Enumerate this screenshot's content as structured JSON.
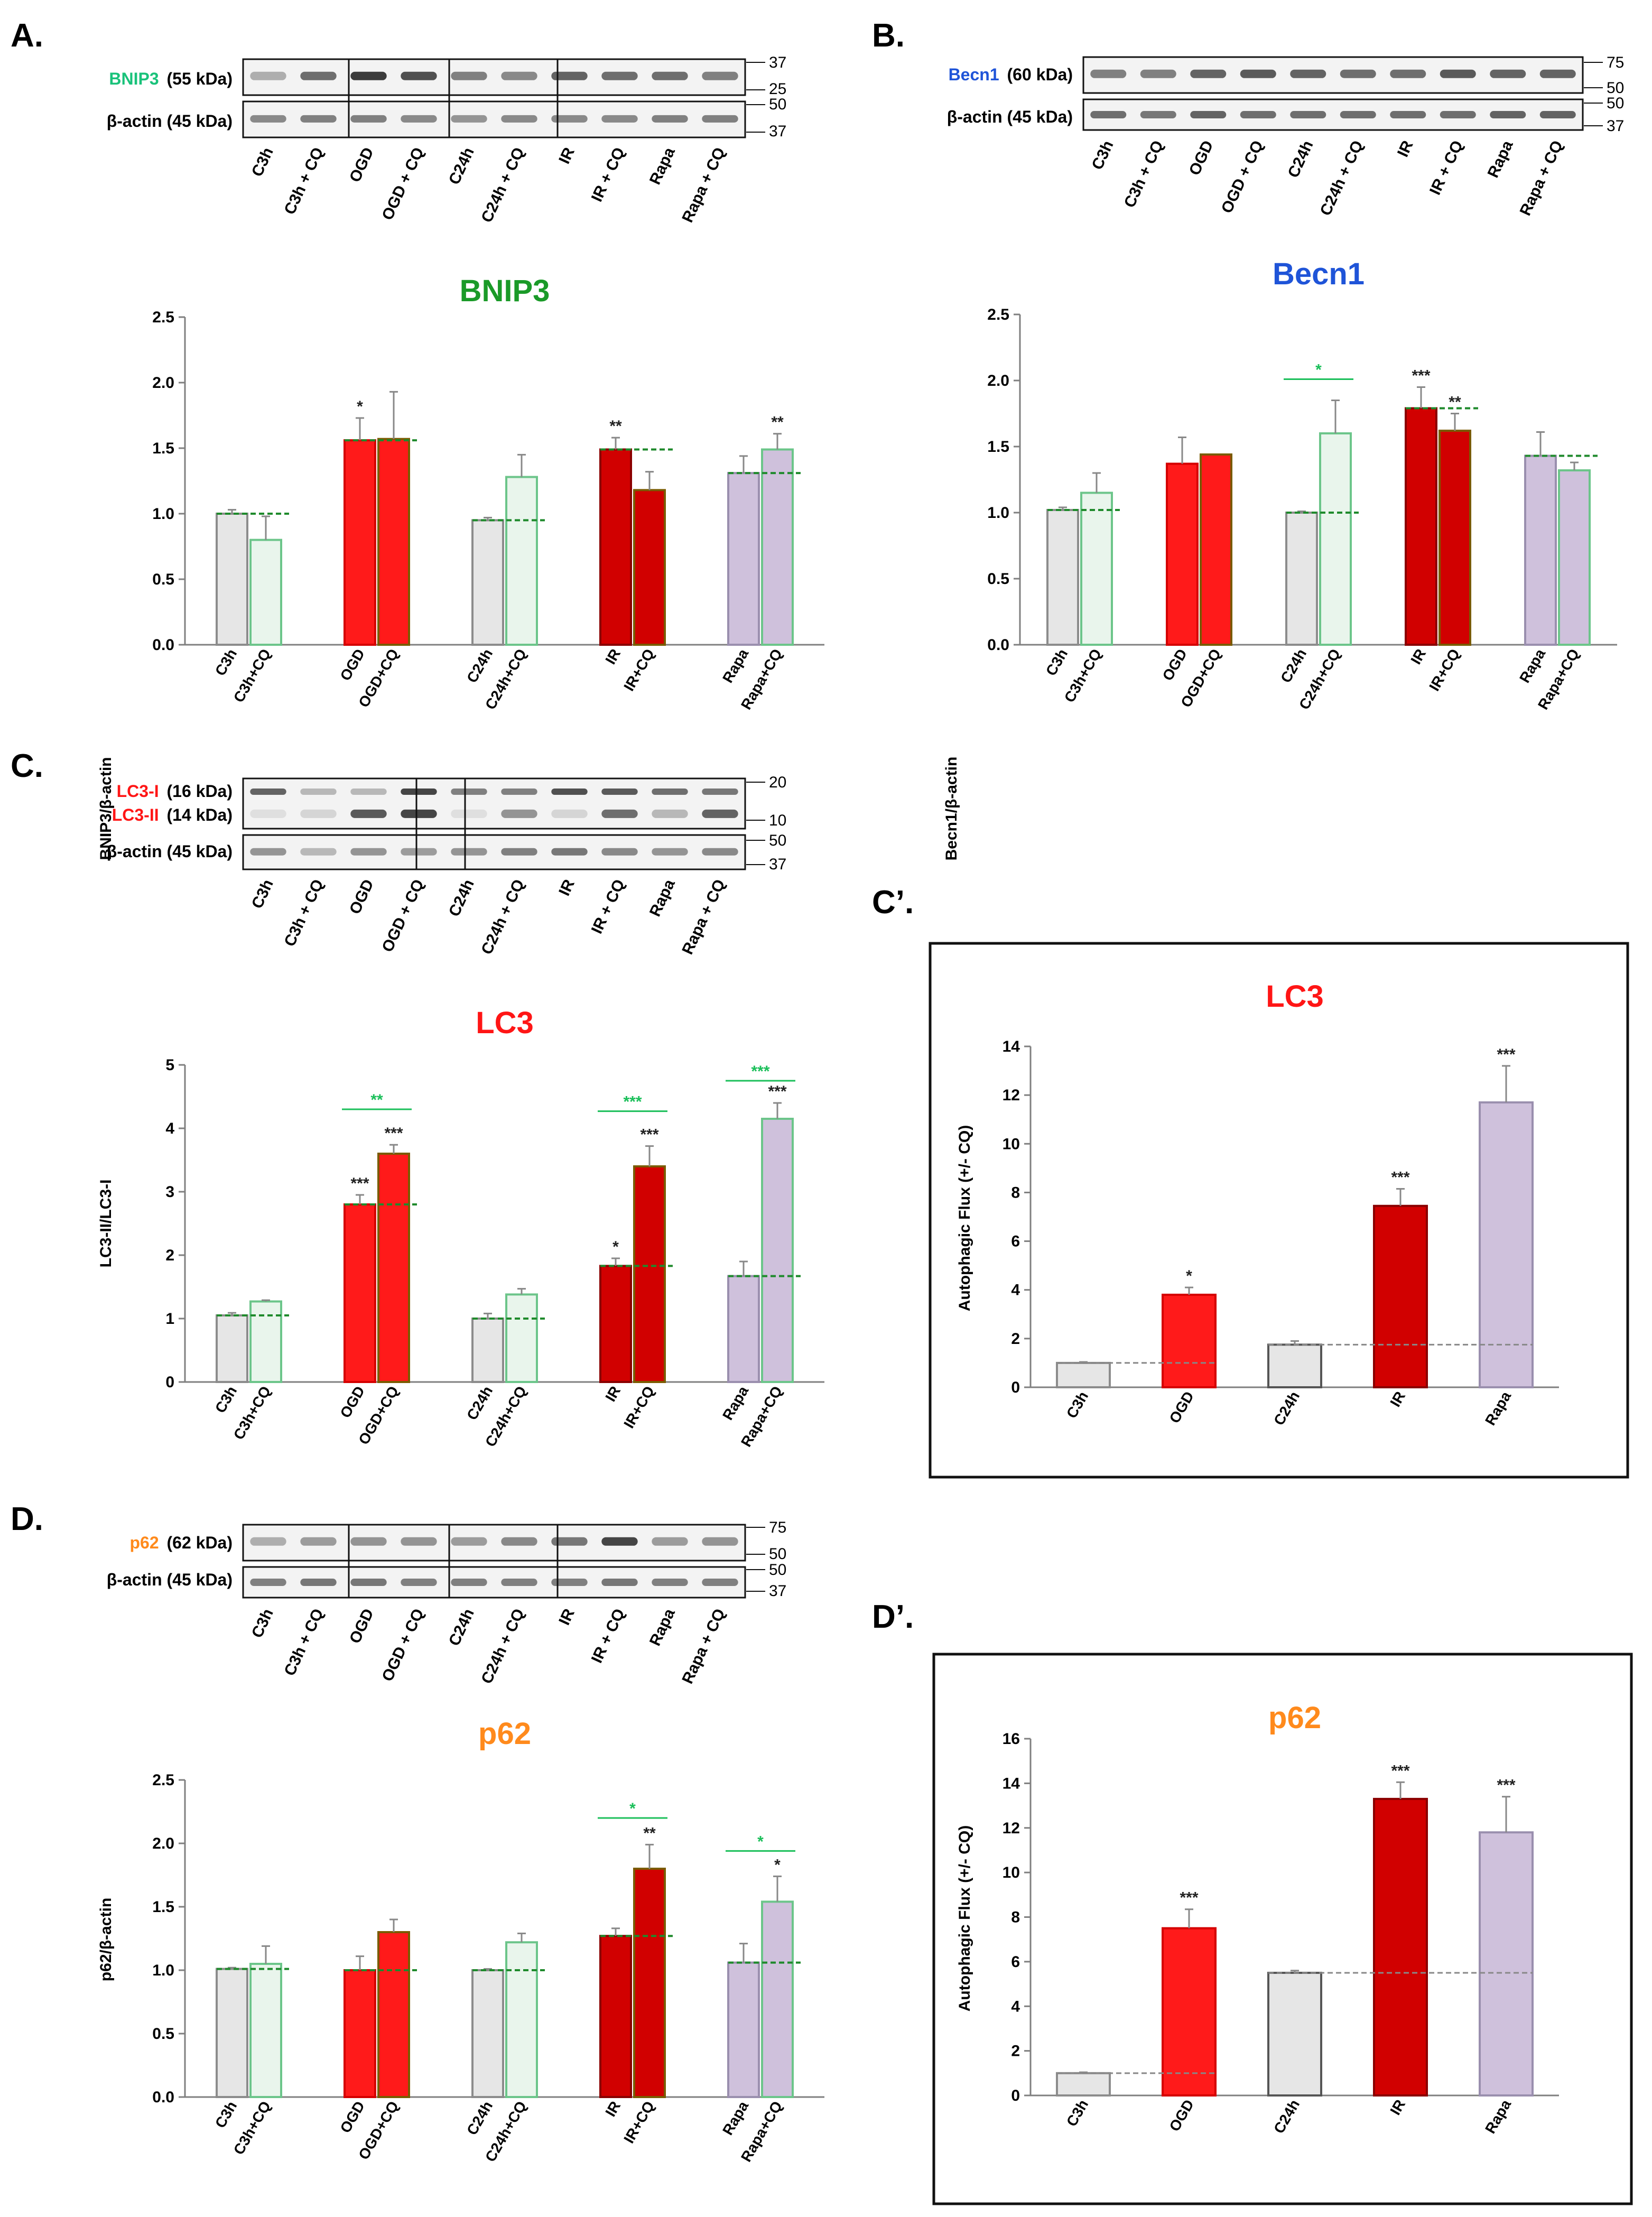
{
  "panel_letters": {
    "a": "A.",
    "b": "B.",
    "c": "C.",
    "c_prime": "C’.",
    "d": "D.",
    "d_prime": "D’."
  },
  "colors": {
    "ctrl": "#e6e6e6",
    "ctrl_edge": "#8c8c8c",
    "cq_fill": "#e9f5ec",
    "cq_edge": "#6cc58a",
    "ogd": "#ff1a1a",
    "ogd_edge": "#d50000",
    "ir": "#d10000",
    "ir_edge": "#8a0000",
    "rapa": "#cfc1dc",
    "rapa_edge": "#9a8fae",
    "dashed_green": "#1f8a2c",
    "sig_green": "#1bbf5a",
    "title_green": "#1a9a28",
    "title_blue": "#1f54d8",
    "title_red": "#ff1515",
    "title_orange": "#ff8a1c"
  },
  "blots": {
    "a": {
      "target_name": "BNIP3",
      "target_color": "#19c27a",
      "target_mw": "(55 kDa)",
      "loading_label": "β-actin (45 kDa)",
      "target_markers": [
        "37",
        "25"
      ],
      "loading_markers": [
        "50",
        "37"
      ],
      "lanes": [
        "C3h",
        "C3h + CQ",
        "OGD",
        "OGD + CQ",
        "C24h",
        "C24h + CQ",
        "IR",
        "IR + CQ",
        "Rapa",
        "Rapa + CQ"
      ],
      "target_band_intensity": [
        0.35,
        0.7,
        0.95,
        0.85,
        0.6,
        0.55,
        0.75,
        0.7,
        0.7,
        0.6
      ],
      "loading_band_intensity": [
        0.55,
        0.6,
        0.6,
        0.55,
        0.5,
        0.55,
        0.55,
        0.55,
        0.6,
        0.6
      ]
    },
    "b": {
      "target_name": "Becn1",
      "target_color": "#1f54d8",
      "target_mw": "(60 kDa)",
      "loading_label": "β-actin (45 kDa)",
      "target_markers": [
        "75",
        "50"
      ],
      "loading_markers": [
        "50",
        "37"
      ],
      "lanes": [
        "C3h",
        "C3h + CQ",
        "OGD",
        "OGD + CQ",
        "C24h",
        "C24h + CQ",
        "IR",
        "IR + CQ",
        "Rapa",
        "Rapa + CQ"
      ],
      "target_band_intensity": [
        0.6,
        0.6,
        0.75,
        0.8,
        0.75,
        0.7,
        0.7,
        0.8,
        0.75,
        0.75
      ],
      "loading_band_intensity": [
        0.7,
        0.65,
        0.75,
        0.7,
        0.7,
        0.7,
        0.7,
        0.7,
        0.75,
        0.75
      ]
    },
    "c": {
      "target_name": "LC3-I",
      "target_mw": "(16 kDa)",
      "target2_name": "LC3-II",
      "target2_mw": "(14 kDa)",
      "target_color": "#ff1515",
      "loading_label": "β-actin (45 kDa)",
      "target_markers": [
        "20",
        "10"
      ],
      "loading_markers": [
        "50",
        "37"
      ],
      "lanes": [
        "C3h",
        "C3h + CQ",
        "OGD",
        "OGD + CQ",
        "C24h",
        "C24h + CQ",
        "IR",
        "IR + CQ",
        "Rapa",
        "Rapa + CQ"
      ],
      "band1_intensity": [
        0.75,
        0.3,
        0.3,
        0.9,
        0.6,
        0.6,
        0.85,
        0.8,
        0.7,
        0.65
      ],
      "band2_intensity": [
        0.1,
        0.15,
        0.8,
        0.9,
        0.1,
        0.5,
        0.15,
        0.7,
        0.3,
        0.75
      ],
      "loading_band_intensity": [
        0.5,
        0.3,
        0.5,
        0.45,
        0.5,
        0.6,
        0.65,
        0.55,
        0.5,
        0.55
      ]
    },
    "d": {
      "target_name": "p62",
      "target_color": "#ff8a1c",
      "target_mw": "(62 kDa)",
      "loading_label": "β-actin (45 kDa)",
      "target_markers": [
        "75",
        "50"
      ],
      "loading_markers": [
        "50",
        "37"
      ],
      "lanes": [
        "C3h",
        "C3h + CQ",
        "OGD",
        "OGD + CQ",
        "C24h",
        "C24h + CQ",
        "IR",
        "IR + CQ",
        "Rapa",
        "Rapa + CQ"
      ],
      "target_band_intensity": [
        0.35,
        0.45,
        0.5,
        0.5,
        0.45,
        0.55,
        0.65,
        0.9,
        0.45,
        0.5
      ],
      "loading_band_intensity": [
        0.6,
        0.65,
        0.65,
        0.6,
        0.6,
        0.6,
        0.6,
        0.65,
        0.6,
        0.6
      ]
    }
  },
  "chart_data": [
    {
      "id": "bnip3",
      "type": "bar",
      "title": "BNIP3",
      "title_color": "#1a9a28",
      "ylabel": "BNIP3/β-actin",
      "ylim": [
        0,
        2.5
      ],
      "yticks": [
        "0.0",
        "0.5",
        "1.0",
        "1.5",
        "2.0",
        "2.5"
      ],
      "categories": [
        "C3h",
        "C3h+CQ",
        "OGD",
        "OGD+CQ",
        "C24h",
        "C24h+CQ",
        "IR",
        "IR+CQ",
        "Rapa",
        "Rapa+CQ"
      ],
      "values": [
        1.0,
        0.8,
        1.56,
        1.57,
        0.95,
        1.28,
        1.49,
        1.18,
        1.31,
        1.49
      ],
      "errors": [
        0.03,
        0.18,
        0.17,
        0.36,
        0.02,
        0.17,
        0.09,
        0.14,
        0.13,
        0.12
      ],
      "significance": [
        "",
        "",
        "*",
        "",
        "",
        "",
        "**",
        "",
        "",
        "**"
      ],
      "baselines": [
        1.0,
        null,
        null,
        1.56,
        null,
        0.95,
        null,
        1.49,
        null,
        1.31
      ],
      "brackets": []
    },
    {
      "id": "becn1",
      "type": "bar",
      "title": "Becn1",
      "title_color": "#1f54d8",
      "ylabel": "Becn1/β-actin",
      "ylim": [
        0,
        2.5
      ],
      "yticks": [
        "0.0",
        "0.5",
        "1.0",
        "1.5",
        "2.0",
        "2.5"
      ],
      "categories": [
        "C3h",
        "C3h+CQ",
        "OGD",
        "OGD+CQ",
        "C24h",
        "C24h+CQ",
        "IR",
        "IR+CQ",
        "Rapa",
        "Rapa+CQ"
      ],
      "values": [
        1.02,
        1.15,
        1.37,
        1.44,
        1.0,
        1.6,
        1.79,
        1.62,
        1.43,
        1.32
      ],
      "errors": [
        0.02,
        0.15,
        0.2,
        0.0,
        0.01,
        0.25,
        0.16,
        0.13,
        0.18,
        0.06
      ],
      "significance": [
        "",
        "",
        "",
        "",
        "",
        "",
        "***",
        "**",
        "",
        ""
      ],
      "baselines": [
        1.02,
        null,
        null,
        null,
        null,
        1.0,
        null,
        1.79,
        null,
        1.43
      ],
      "brackets": [
        {
          "pair": 2,
          "label": "*",
          "level": 2.01
        }
      ]
    },
    {
      "id": "lc3",
      "type": "bar",
      "title": "LC3",
      "title_color": "#ff1515",
      "ylabel": "LC3-II/LC3-I",
      "ylim": [
        0,
        5
      ],
      "yticks": [
        "0",
        "1",
        "2",
        "3",
        "4",
        "5"
      ],
      "categories": [
        "C3h",
        "C3h+CQ",
        "OGD",
        "OGD+CQ",
        "C24h",
        "C24h+CQ",
        "IR",
        "IR+CQ",
        "Rapa",
        "Rapa+CQ"
      ],
      "values": [
        1.05,
        1.27,
        2.8,
        3.6,
        1.0,
        1.38,
        1.83,
        3.4,
        1.67,
        4.15
      ],
      "errors": [
        0.04,
        0.02,
        0.15,
        0.14,
        0.08,
        0.09,
        0.12,
        0.32,
        0.23,
        0.25
      ],
      "significance": [
        "",
        "",
        "***",
        "***",
        "",
        "",
        "*",
        "***",
        "",
        "***"
      ],
      "baselines": [
        1.05,
        null,
        null,
        2.8,
        null,
        1.0,
        null,
        1.83,
        null,
        1.67
      ],
      "brackets": [
        {
          "pair": 1,
          "label": "**",
          "level": 4.3
        },
        {
          "pair": 3,
          "label": "***",
          "level": 4.27
        },
        {
          "pair": 4,
          "label": "***",
          "level": 4.75
        }
      ]
    },
    {
      "id": "p62",
      "type": "bar",
      "title": "p62",
      "title_color": "#ff8a1c",
      "ylabel": "p62/β-actin",
      "ylim": [
        0,
        2.5
      ],
      "yticks": [
        "0.0",
        "0.5",
        "1.0",
        "1.5",
        "2.0",
        "2.5"
      ],
      "categories": [
        "C3h",
        "C3h+CQ",
        "OGD",
        "OGD+CQ",
        "C24h",
        "C24h+CQ",
        "IR",
        "IR+CQ",
        "Rapa",
        "Rapa+CQ"
      ],
      "values": [
        1.01,
        1.05,
        1.0,
        1.3,
        1.0,
        1.22,
        1.27,
        1.8,
        1.06,
        1.54
      ],
      "errors": [
        0.01,
        0.14,
        0.11,
        0.1,
        0.01,
        0.07,
        0.06,
        0.19,
        0.15,
        0.2
      ],
      "significance": [
        "",
        "",
        "",
        "",
        "",
        "",
        "",
        "**",
        "",
        "*"
      ],
      "baselines": [
        1.01,
        null,
        null,
        1.0,
        null,
        1.0,
        null,
        1.27,
        null,
        1.06
      ],
      "brackets": [
        {
          "pair": 3,
          "label": "*",
          "level": 2.2
        },
        {
          "pair": 4,
          "label": "*",
          "level": 1.94
        }
      ]
    },
    {
      "id": "lc3_flux",
      "type": "bar",
      "title": "LC3",
      "title_color": "#ff1515",
      "ylabel": "Autophagic Flux (+/- CQ)",
      "ylim": [
        0,
        14
      ],
      "yticks": [
        "0",
        "2",
        "4",
        "6",
        "8",
        "10",
        "12",
        "14"
      ],
      "categories": [
        "C3h",
        "OGD",
        "C24h",
        "IR",
        "Rapa"
      ],
      "values": [
        1.0,
        3.8,
        1.75,
        7.45,
        11.7
      ],
      "errors": [
        0.04,
        0.3,
        0.15,
        0.7,
        1.5
      ],
      "significance": [
        "",
        "*",
        "",
        "***",
        "***"
      ],
      "baselines": [
        {
          "from": 0,
          "to": 1,
          "value": 1.0
        },
        {
          "from": 2,
          "to": 4,
          "value": 1.75
        }
      ]
    },
    {
      "id": "p62_flux",
      "type": "bar",
      "title": "p62",
      "title_color": "#ff8a1c",
      "ylabel": "Autophagic Flux (+/- CQ)",
      "ylim": [
        0,
        16
      ],
      "yticks": [
        "0",
        "2",
        "4",
        "6",
        "8",
        "10",
        "12",
        "14",
        "16"
      ],
      "categories": [
        "C3h",
        "OGD",
        "C24h",
        "IR",
        "Rapa"
      ],
      "values": [
        1.0,
        7.5,
        5.5,
        13.3,
        11.8
      ],
      "errors": [
        0.04,
        0.85,
        0.1,
        0.75,
        1.6
      ],
      "significance": [
        "",
        "***",
        "",
        "***",
        "***"
      ],
      "baselines": [
        {
          "from": 0,
          "to": 1,
          "value": 1.0
        },
        {
          "from": 2,
          "to": 4,
          "value": 5.5
        }
      ]
    }
  ]
}
